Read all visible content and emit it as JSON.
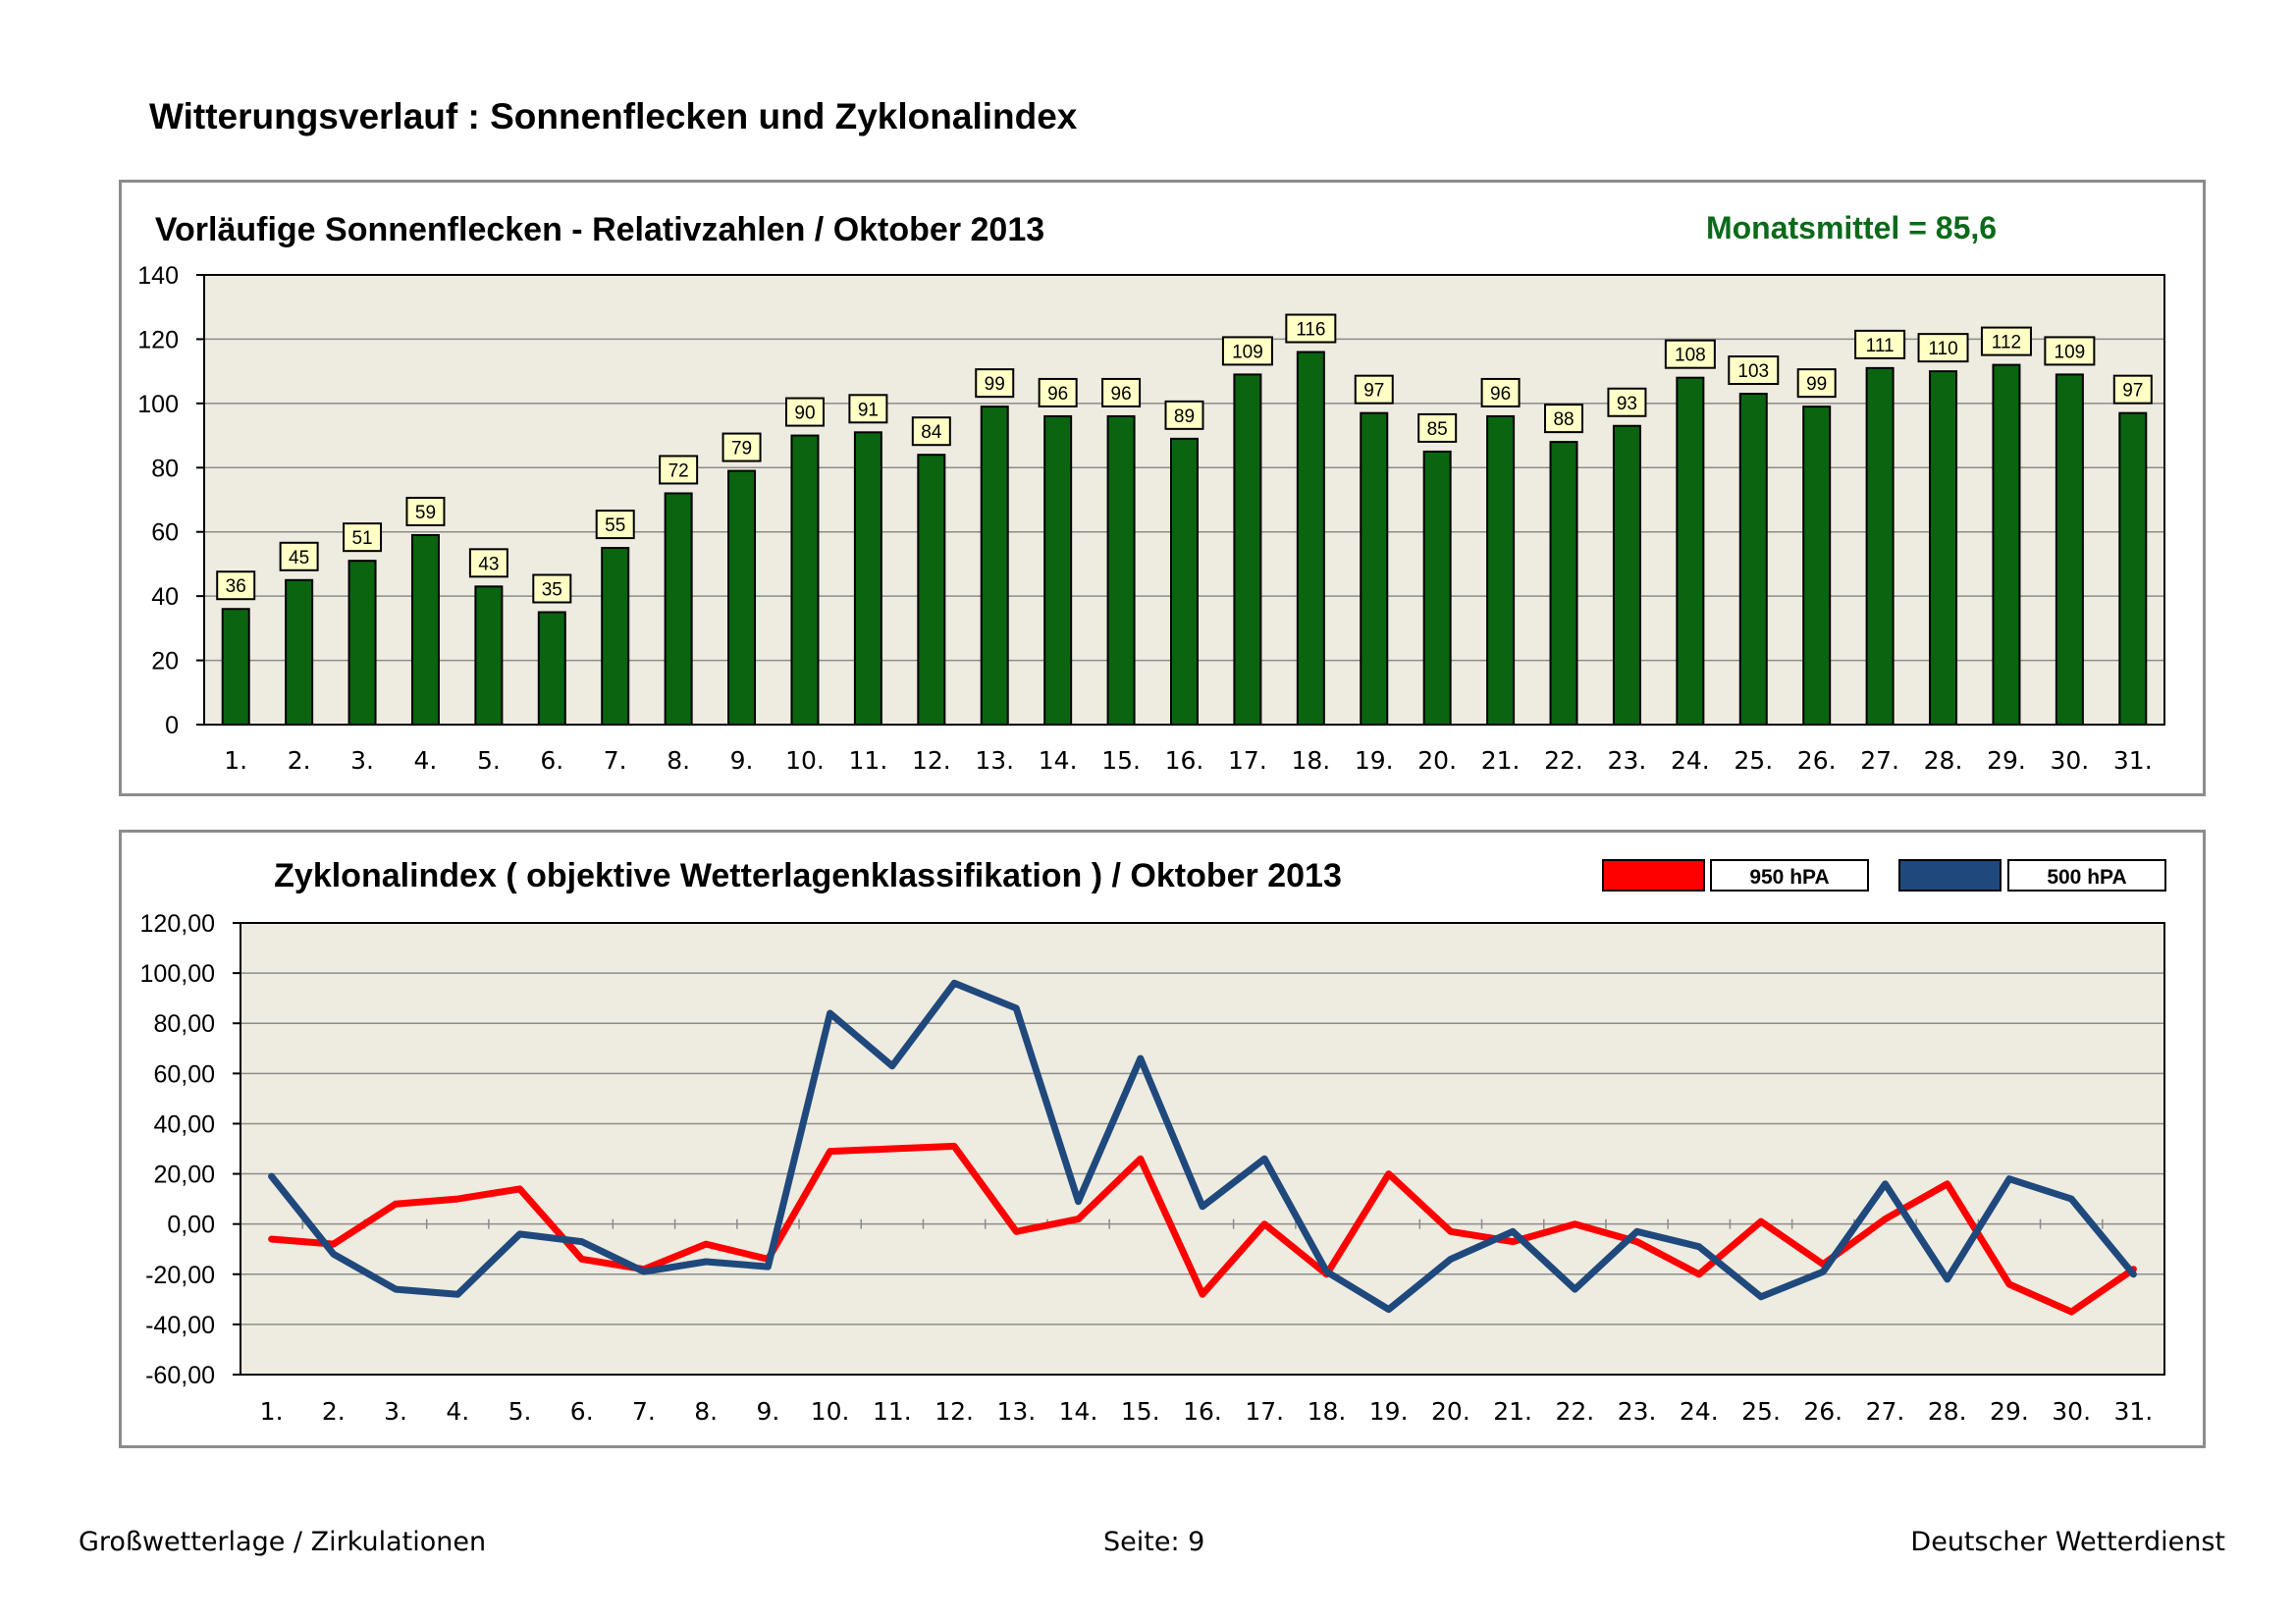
{
  "page": {
    "title": "Witterungsverlauf : Sonnenflecken und Zyklonalindex",
    "footer_left": "Großwetterlage / Zirkulationen",
    "footer_center": "Seite: 9",
    "footer_right": "Deutscher Wetterdienst"
  },
  "colors": {
    "plot_bg": "#eeebe0",
    "bar_fill": "#0a6410",
    "label_box": "#ffffc6",
    "mean_text": "#0b6a1a",
    "series_950": "#ff0000",
    "series_500": "#1f497d",
    "grid": "#8c8c8c"
  },
  "chart_data": [
    {
      "type": "bar",
      "title": "Vorläufige Sonnenflecken - Relativzahlen  /   Oktober 2013",
      "annotation": "Monatsmittel = 85,6",
      "categories": [
        "1.",
        "2.",
        "3.",
        "4.",
        "5.",
        "6.",
        "7.",
        "8.",
        "9.",
        "10.",
        "11.",
        "12.",
        "13.",
        "14.",
        "15.",
        "16.",
        "17.",
        "18.",
        "19.",
        "20.",
        "21.",
        "22.",
        "23.",
        "24.",
        "25.",
        "26.",
        "27.",
        "28.",
        "29.",
        "30.",
        "31."
      ],
      "values": [
        36,
        45,
        51,
        59,
        43,
        35,
        55,
        72,
        79,
        90,
        91,
        84,
        99,
        96,
        96,
        89,
        109,
        116,
        97,
        85,
        96,
        88,
        93,
        108,
        103,
        99,
        111,
        110,
        112,
        109,
        97
      ],
      "ylim": [
        0,
        140
      ],
      "yticks": [
        "0",
        "20",
        "40",
        "60",
        "80",
        "100",
        "120",
        "140"
      ],
      "grid": true,
      "xlabel": "",
      "ylabel": ""
    },
    {
      "type": "line",
      "title": "Zyklonalindex  ( objektive Wetterlagenklassifikation )  /  Oktober 2013",
      "categories": [
        "1.",
        "2.",
        "3.",
        "4.",
        "5.",
        "6.",
        "7.",
        "8.",
        "9.",
        "10.",
        "11.",
        "12.",
        "13.",
        "14.",
        "15.",
        "16.",
        "17.",
        "18.",
        "19.",
        "20.",
        "21.",
        "22.",
        "23.",
        "24.",
        "25.",
        "26.",
        "27.",
        "28.",
        "29.",
        "30.",
        "31."
      ],
      "ylim": [
        -60,
        120
      ],
      "yticks": [
        "-60,00",
        "-40,00",
        "-20,00",
        "0,00",
        "20,00",
        "40,00",
        "60,00",
        "80,00",
        "100,00",
        "120,00"
      ],
      "grid": true,
      "legend_position": "top-right",
      "series": [
        {
          "name": "950 hPA",
          "values": [
            -6,
            -8,
            8,
            10,
            14,
            -14,
            -18,
            -8,
            -14,
            29,
            30,
            31,
            -3,
            2,
            26,
            -28,
            0,
            -20,
            20,
            -3,
            -7,
            0,
            -7,
            -20,
            1,
            -16,
            2,
            16,
            -24,
            -35,
            -18
          ]
        },
        {
          "name": "500 hPA",
          "values": [
            19,
            -12,
            -26,
            -28,
            -4,
            -7,
            -19,
            -15,
            -17,
            84,
            63,
            96,
            86,
            9,
            66,
            7,
            26,
            -19,
            -34,
            -14,
            -3,
            -26,
            -3,
            -9,
            -29,
            -19,
            16,
            -22,
            18,
            10,
            -20
          ]
        }
      ],
      "xlabel": "",
      "ylabel": ""
    }
  ]
}
